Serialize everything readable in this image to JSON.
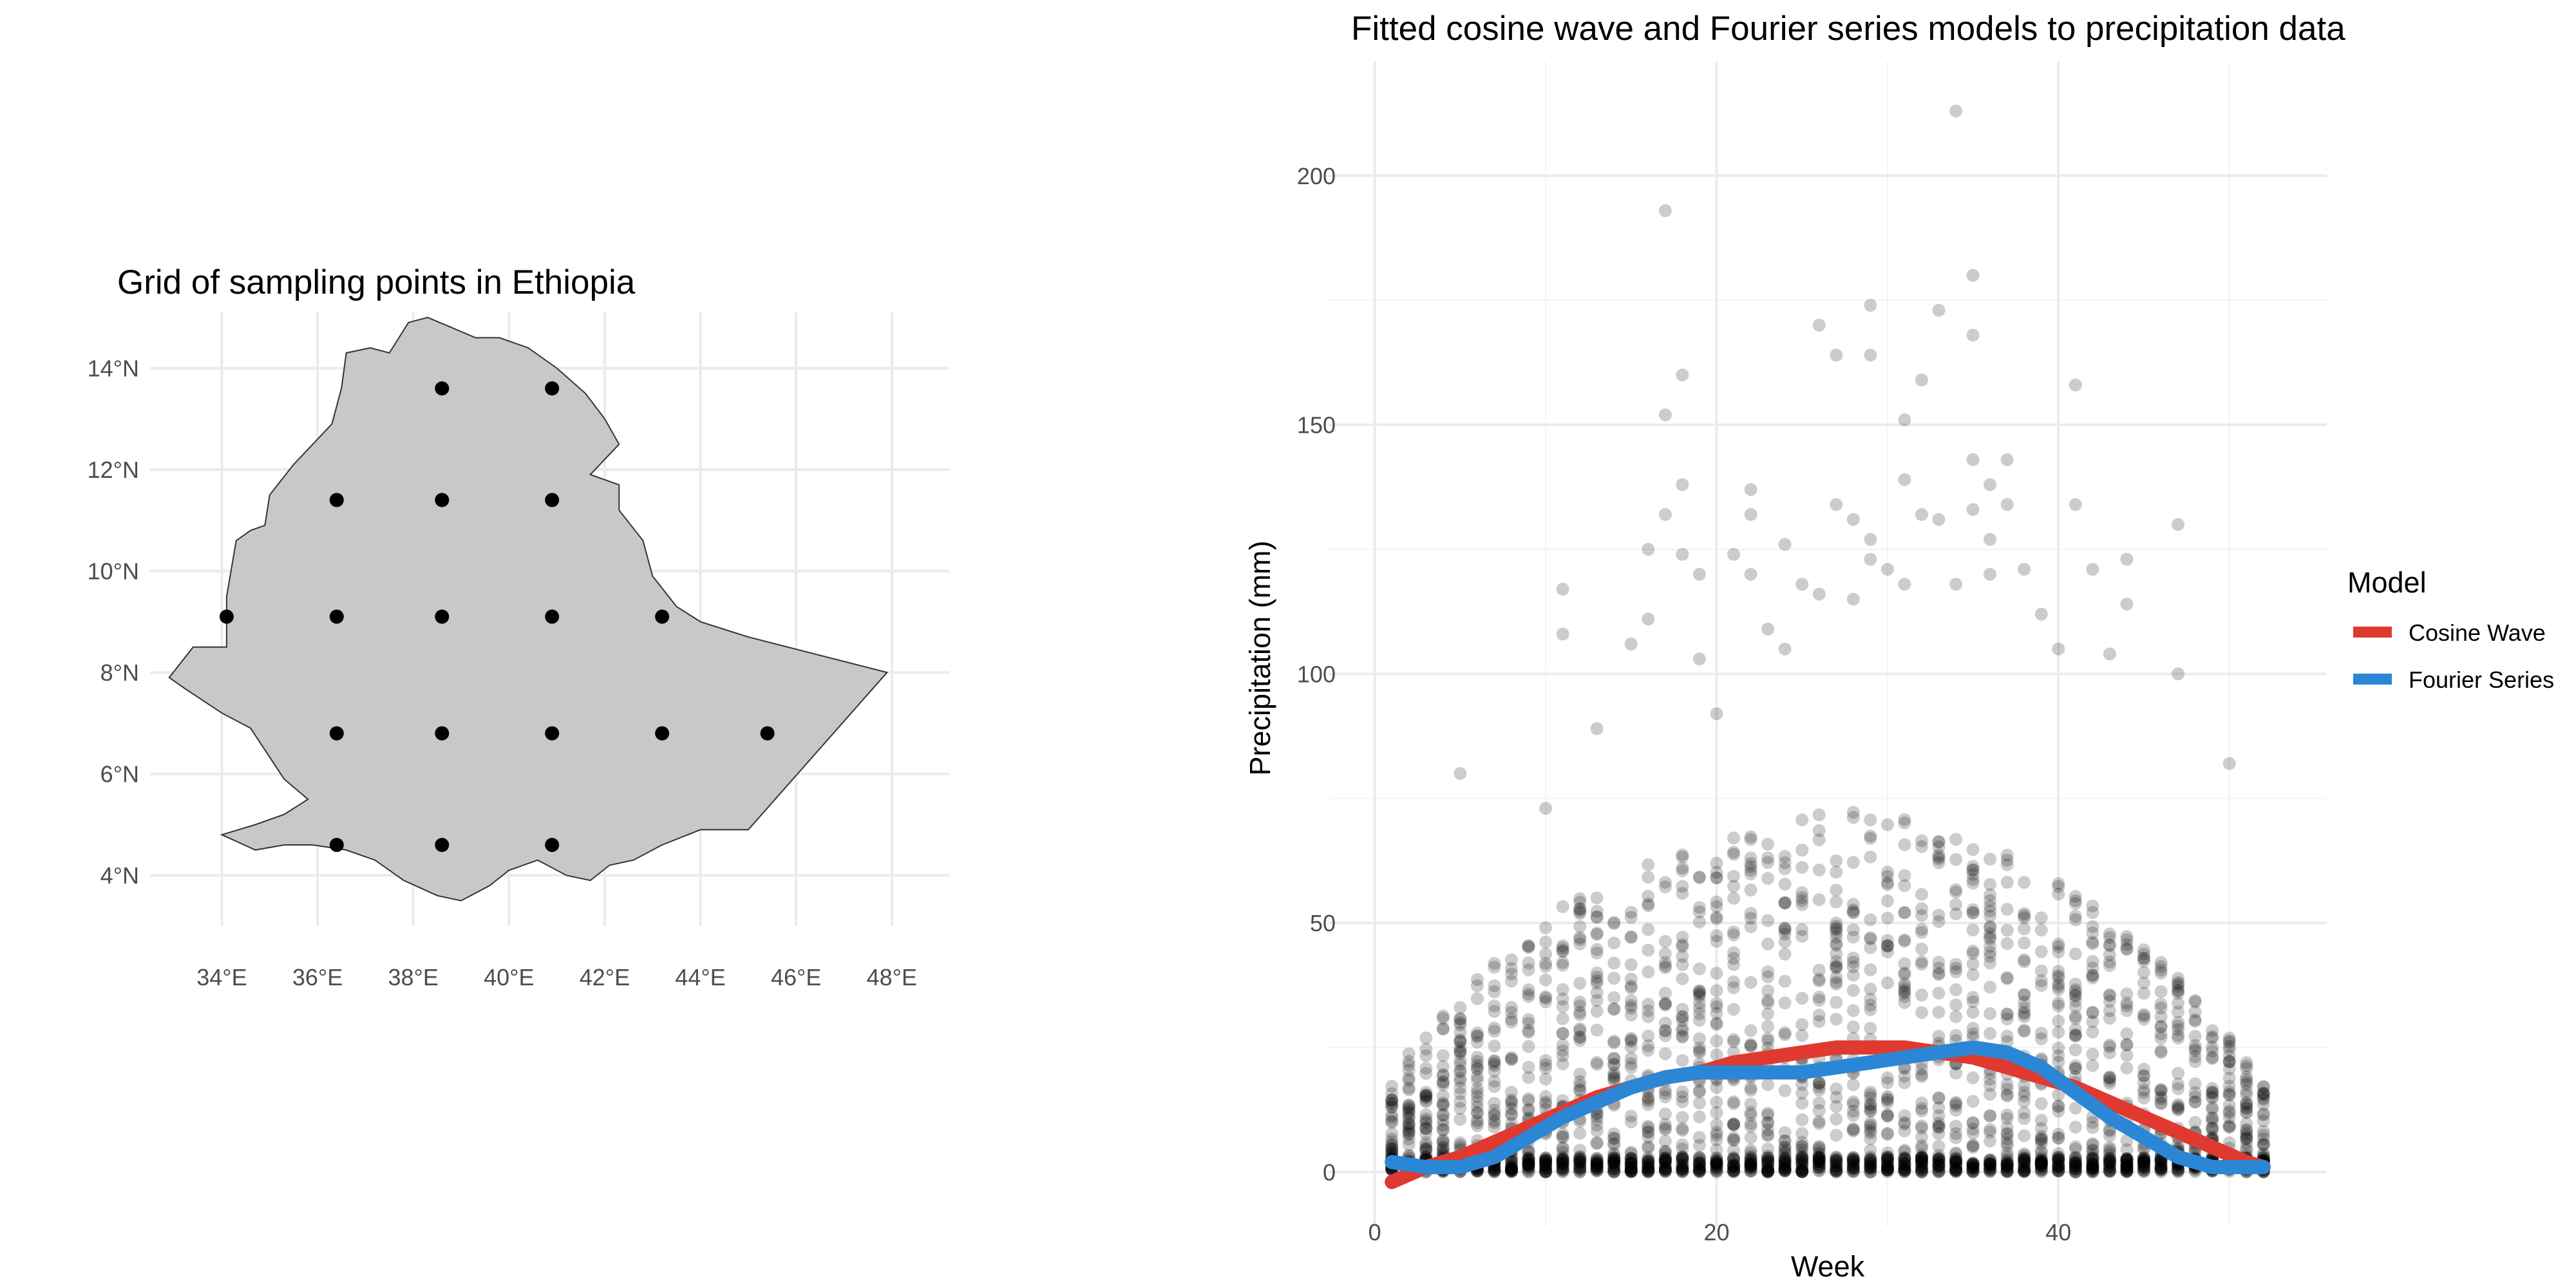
{
  "map_panel": {
    "title": "Grid of sampling points in Ethiopia",
    "x_ticks": [
      34,
      36,
      38,
      40,
      42,
      44,
      46,
      48
    ],
    "x_tick_labels": [
      "34°E",
      "36°E",
      "38°E",
      "40°E",
      "42°E",
      "44°E",
      "46°E",
      "48°E"
    ],
    "y_ticks": [
      4,
      6,
      8,
      10,
      12,
      14
    ],
    "y_tick_labels": [
      "4°N",
      "6°N",
      "8°N",
      "10°N",
      "12°N",
      "14°N"
    ],
    "xlim": [
      32.5,
      49.2
    ],
    "ylim": [
      3.0,
      15.1
    ],
    "country_fill": "#c8c8c8",
    "country_stroke": "#333333",
    "outline": [
      [
        34.0,
        4.8
      ],
      [
        34.7,
        4.5
      ],
      [
        35.3,
        4.6
      ],
      [
        35.9,
        4.6
      ],
      [
        36.6,
        4.5
      ],
      [
        37.2,
        4.3
      ],
      [
        37.8,
        3.9
      ],
      [
        38.5,
        3.6
      ],
      [
        39.0,
        3.5
      ],
      [
        39.6,
        3.8
      ],
      [
        40.0,
        4.1
      ],
      [
        40.6,
        4.3
      ],
      [
        41.2,
        4.0
      ],
      [
        41.7,
        3.9
      ],
      [
        42.1,
        4.2
      ],
      [
        42.6,
        4.3
      ],
      [
        43.2,
        4.6
      ],
      [
        44.0,
        4.9
      ],
      [
        45.0,
        4.9
      ],
      [
        47.9,
        8.0
      ],
      [
        45.0,
        8.7
      ],
      [
        44.0,
        9.0
      ],
      [
        43.5,
        9.3
      ],
      [
        43.0,
        9.9
      ],
      [
        42.8,
        10.6
      ],
      [
        42.3,
        11.2
      ],
      [
        42.3,
        11.7
      ],
      [
        41.7,
        11.9
      ],
      [
        42.3,
        12.5
      ],
      [
        42.0,
        13.0
      ],
      [
        41.6,
        13.5
      ],
      [
        41.0,
        14.0
      ],
      [
        40.4,
        14.4
      ],
      [
        39.8,
        14.6
      ],
      [
        39.3,
        14.6
      ],
      [
        38.8,
        14.8
      ],
      [
        38.3,
        15.0
      ],
      [
        37.9,
        14.9
      ],
      [
        37.5,
        14.3
      ],
      [
        37.1,
        14.4
      ],
      [
        36.6,
        14.3
      ],
      [
        36.5,
        13.6
      ],
      [
        36.3,
        12.9
      ],
      [
        35.9,
        12.5
      ],
      [
        35.5,
        12.1
      ],
      [
        35.0,
        11.5
      ],
      [
        34.9,
        10.9
      ],
      [
        34.6,
        10.8
      ],
      [
        34.3,
        10.6
      ],
      [
        34.1,
        9.5
      ],
      [
        34.1,
        8.5
      ],
      [
        33.4,
        8.5
      ],
      [
        32.9,
        7.9
      ],
      [
        33.2,
        7.7
      ],
      [
        34.0,
        7.2
      ],
      [
        34.6,
        6.9
      ],
      [
        35.3,
        5.9
      ],
      [
        35.8,
        5.5
      ],
      [
        35.3,
        5.2
      ],
      [
        34.7,
        5.0
      ]
    ],
    "points": [
      [
        38.6,
        13.6
      ],
      [
        40.9,
        13.6
      ],
      [
        36.4,
        11.4
      ],
      [
        38.6,
        11.4
      ],
      [
        40.9,
        11.4
      ],
      [
        34.1,
        9.1
      ],
      [
        36.4,
        9.1
      ],
      [
        38.6,
        9.1
      ],
      [
        40.9,
        9.1
      ],
      [
        43.2,
        9.1
      ],
      [
        36.4,
        6.8
      ],
      [
        38.6,
        6.8
      ],
      [
        40.9,
        6.8
      ],
      [
        43.2,
        6.8
      ],
      [
        45.4,
        6.8
      ],
      [
        36.4,
        4.6
      ],
      [
        38.6,
        4.6
      ],
      [
        40.9,
        4.6
      ]
    ]
  },
  "chart_data": {
    "type": "scatter",
    "title": "Fitted cosine wave and Fourier series models to precipitation data",
    "xlabel": "Week",
    "ylabel": "Precipitation (mm)",
    "xlim": [
      -2.7,
      55.7
    ],
    "ylim": [
      -11,
      223
    ],
    "x_ticks": [
      0,
      20,
      40
    ],
    "y_ticks": [
      0,
      50,
      100,
      150,
      200
    ],
    "grid": true,
    "legend": {
      "title": "Model",
      "position": "right",
      "entries": [
        "Cosine Wave",
        "Fourier Series"
      ]
    },
    "point_color": "#000000",
    "point_alpha": 0.2,
    "outliers": [
      [
        5,
        80
      ],
      [
        10,
        73
      ],
      [
        11,
        117
      ],
      [
        11,
        108
      ],
      [
        13,
        89
      ],
      [
        15,
        106
      ],
      [
        16,
        111
      ],
      [
        16,
        125
      ],
      [
        17,
        193
      ],
      [
        17,
        152
      ],
      [
        17,
        132
      ],
      [
        18,
        160
      ],
      [
        18,
        138
      ],
      [
        18,
        124
      ],
      [
        19,
        120
      ],
      [
        19,
        103
      ],
      [
        20,
        92
      ],
      [
        21,
        124
      ],
      [
        22,
        137
      ],
      [
        22,
        132
      ],
      [
        22,
        120
      ],
      [
        23,
        109
      ],
      [
        24,
        126
      ],
      [
        24,
        105
      ],
      [
        25,
        118
      ],
      [
        26,
        170
      ],
      [
        26,
        116
      ],
      [
        27,
        164
      ],
      [
        27,
        134
      ],
      [
        28,
        131
      ],
      [
        28,
        115
      ],
      [
        29,
        174
      ],
      [
        29,
        164
      ],
      [
        29,
        127
      ],
      [
        29,
        123
      ],
      [
        30,
        121
      ],
      [
        31,
        151
      ],
      [
        31,
        139
      ],
      [
        31,
        118
      ],
      [
        32,
        159
      ],
      [
        32,
        132
      ],
      [
        33,
        173
      ],
      [
        33,
        131
      ],
      [
        34,
        213
      ],
      [
        34,
        118
      ],
      [
        35,
        180
      ],
      [
        35,
        168
      ],
      [
        35,
        143
      ],
      [
        35,
        133
      ],
      [
        36,
        138
      ],
      [
        36,
        127
      ],
      [
        36,
        120
      ],
      [
        37,
        143
      ],
      [
        37,
        134
      ],
      [
        38,
        121
      ],
      [
        39,
        112
      ],
      [
        40,
        105
      ],
      [
        41,
        158
      ],
      [
        41,
        134
      ],
      [
        42,
        121
      ],
      [
        43,
        104
      ],
      [
        44,
        123
      ],
      [
        44,
        114
      ],
      [
        47,
        130
      ],
      [
        47,
        100
      ],
      [
        50,
        82
      ]
    ],
    "series": [
      {
        "name": "Cosine Wave",
        "color": "#e03a30",
        "points": [
          [
            1,
            -2
          ],
          [
            3,
            1
          ],
          [
            5,
            3
          ],
          [
            7,
            6
          ],
          [
            9,
            9
          ],
          [
            11,
            12
          ],
          [
            13,
            15
          ],
          [
            15,
            17
          ],
          [
            17,
            19
          ],
          [
            19,
            20
          ],
          [
            21,
            22
          ],
          [
            23,
            23
          ],
          [
            25,
            24
          ],
          [
            27,
            25
          ],
          [
            29,
            25
          ],
          [
            31,
            25
          ],
          [
            33,
            24
          ],
          [
            35,
            23
          ],
          [
            37,
            21
          ],
          [
            39,
            19
          ],
          [
            41,
            17
          ],
          [
            43,
            14
          ],
          [
            45,
            11
          ],
          [
            47,
            8
          ],
          [
            49,
            5
          ],
          [
            51,
            2
          ],
          [
            52,
            1
          ]
        ]
      },
      {
        "name": "Fourier Series",
        "color": "#2b86d6",
        "points": [
          [
            1,
            2
          ],
          [
            3,
            1
          ],
          [
            5,
            1
          ],
          [
            7,
            3
          ],
          [
            9,
            7
          ],
          [
            11,
            11
          ],
          [
            13,
            14
          ],
          [
            15,
            17
          ],
          [
            17,
            19
          ],
          [
            19,
            20
          ],
          [
            21,
            20
          ],
          [
            23,
            20
          ],
          [
            25,
            20
          ],
          [
            27,
            21
          ],
          [
            29,
            22
          ],
          [
            31,
            23
          ],
          [
            33,
            24
          ],
          [
            35,
            25
          ],
          [
            37,
            24
          ],
          [
            39,
            21
          ],
          [
            41,
            16
          ],
          [
            43,
            11
          ],
          [
            45,
            7
          ],
          [
            47,
            3
          ],
          [
            49,
            1
          ],
          [
            51,
            1
          ],
          [
            52,
            1
          ]
        ]
      }
    ]
  }
}
